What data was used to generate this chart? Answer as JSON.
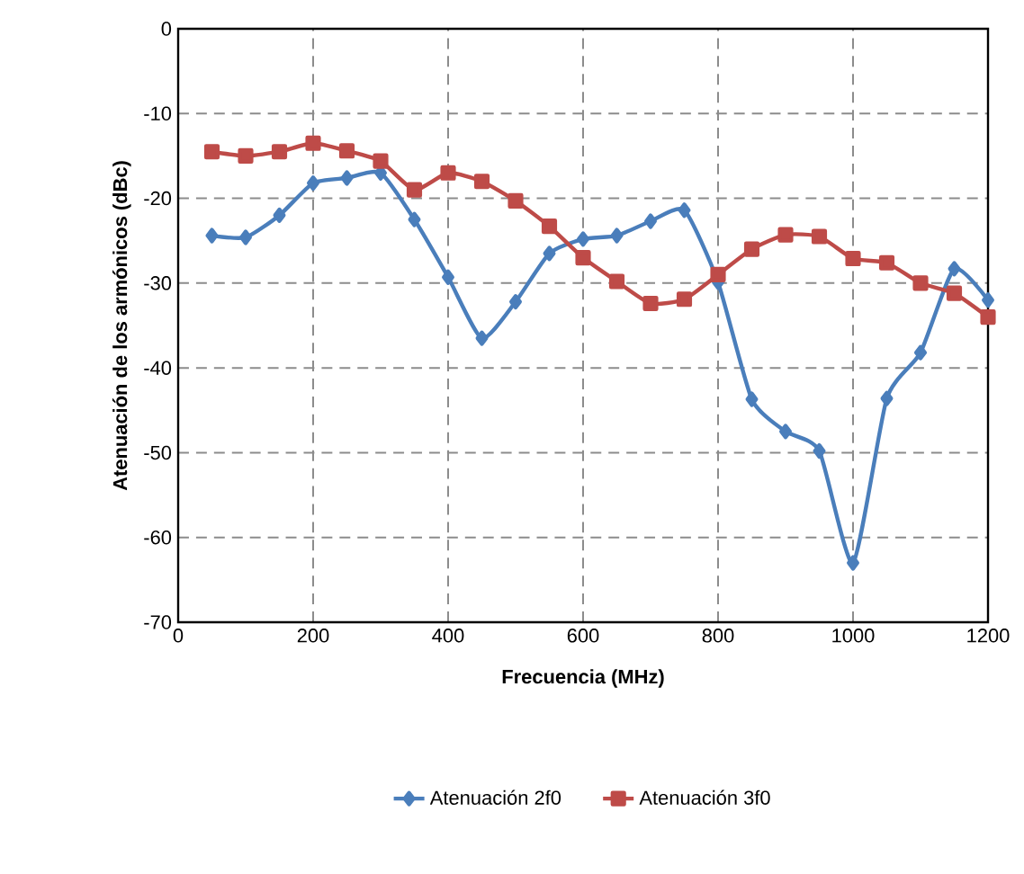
{
  "chart_data": {
    "type": "line",
    "xlabel": "Frecuencia (MHz)",
    "ylabel": "Atenuación de los armónicos (dBc)",
    "xlim": [
      0,
      1200
    ],
    "ylim": [
      -70,
      0
    ],
    "xticks": [
      0,
      200,
      400,
      600,
      800,
      1000,
      1200
    ],
    "yticks": [
      -70,
      -60,
      -50,
      -40,
      -30,
      -20,
      -10,
      0
    ],
    "grid": true,
    "legend": "bottom",
    "line_style": "solid",
    "x": [
      50,
      100,
      150,
      200,
      250,
      300,
      350,
      400,
      450,
      500,
      550,
      600,
      650,
      700,
      750,
      800,
      850,
      900,
      950,
      1000,
      1050,
      1100,
      1150,
      1200
    ],
    "series": [
      {
        "name": "Atenuación 2f0",
        "color": "#4a7ebb",
        "marker": "diamond",
        "values": [
          -24.4,
          -24.6,
          -22,
          -18.2,
          -17.6,
          -17,
          -22.5,
          -29.3,
          -36.5,
          -32.2,
          -26.5,
          -24.8,
          -24.4,
          -22.7,
          -21.4,
          -29.9,
          -43.7,
          -47.5,
          -49.8,
          -63,
          -43.6,
          -38.2,
          -28.3,
          -32
        ]
      },
      {
        "name": "Atenuación 3f0",
        "color": "#be4b48",
        "marker": "square",
        "values": [
          -14.5,
          -15,
          -14.5,
          -13.5,
          -14.4,
          -15.6,
          -19,
          -17,
          -18,
          -20.3,
          -23.3,
          -27,
          -29.8,
          -32.4,
          -31.9,
          -29,
          -26,
          -24.3,
          -24.5,
          -27.1,
          -27.6,
          -30,
          -31.2,
          -34
        ]
      }
    ]
  }
}
